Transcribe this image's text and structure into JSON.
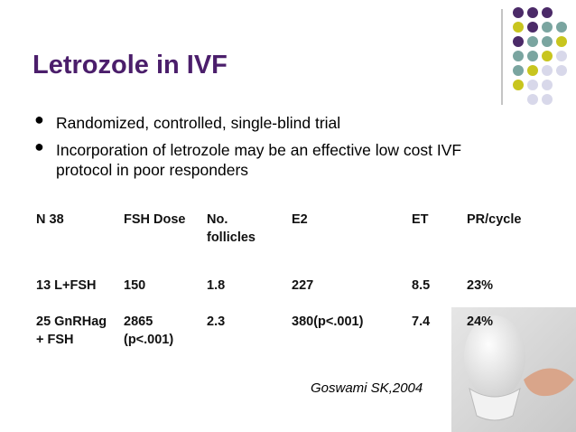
{
  "title": "Letrozole in IVF",
  "bullets": [
    "Randomized, controlled, single-blind trial",
    "Incorporation of letrozole may be an effective low cost IVF protocol in poor responders"
  ],
  "table": {
    "header": [
      "N 38",
      "FSH Dose",
      "No. follicles",
      "E2",
      "ET",
      "PR/cycle"
    ],
    "rows": [
      [
        "13 L+FSH",
        "150",
        "1.8",
        "227",
        "8.5",
        "23%"
      ],
      [
        "25 GnRHag + FSH",
        "2865 (p<.001)",
        "2.3",
        "380(p<.001)",
        "7.4",
        "24%"
      ]
    ]
  },
  "citation": "Goswami SK,2004"
}
